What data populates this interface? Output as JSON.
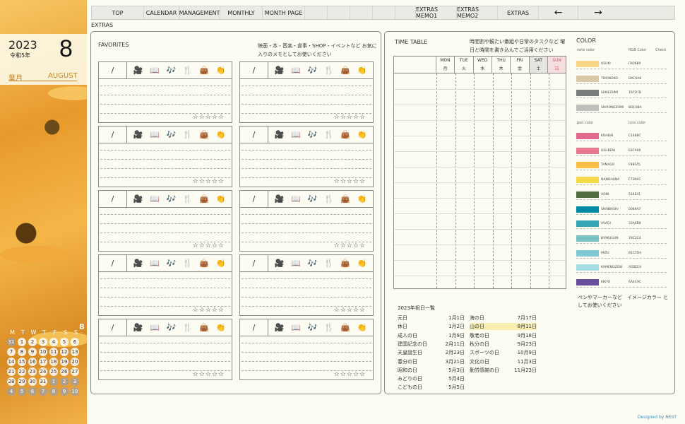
{
  "sidebar": {
    "year": "2023",
    "wareki": "令和5年",
    "month_number": "8",
    "old_month_name": "葉月",
    "english_month": "AUGUST",
    "mini_calendar": {
      "month": "8",
      "weekdays": [
        "M",
        "T",
        "W",
        "T",
        "F",
        "S",
        "S"
      ],
      "days": [
        {
          "d": "31",
          "gray": true
        },
        {
          "d": "1"
        },
        {
          "d": "2"
        },
        {
          "d": "3"
        },
        {
          "d": "4"
        },
        {
          "d": "5"
        },
        {
          "d": "6"
        },
        {
          "d": "7"
        },
        {
          "d": "8"
        },
        {
          "d": "9"
        },
        {
          "d": "10"
        },
        {
          "d": "11"
        },
        {
          "d": "12"
        },
        {
          "d": "13"
        },
        {
          "d": "14"
        },
        {
          "d": "15"
        },
        {
          "d": "16"
        },
        {
          "d": "17"
        },
        {
          "d": "18"
        },
        {
          "d": "19"
        },
        {
          "d": "20"
        },
        {
          "d": "21"
        },
        {
          "d": "22"
        },
        {
          "d": "23"
        },
        {
          "d": "24"
        },
        {
          "d": "25"
        },
        {
          "d": "26"
        },
        {
          "d": "27"
        },
        {
          "d": "28"
        },
        {
          "d": "29"
        },
        {
          "d": "30"
        },
        {
          "d": "31"
        },
        {
          "d": "1",
          "gray": true
        },
        {
          "d": "2",
          "gray": true
        },
        {
          "d": "3",
          "gray": true
        },
        {
          "d": "4",
          "gray": true
        },
        {
          "d": "5",
          "gray": true
        },
        {
          "d": "6",
          "gray": true
        },
        {
          "d": "7",
          "gray": true
        },
        {
          "d": "8",
          "gray": true
        },
        {
          "d": "9",
          "gray": true
        },
        {
          "d": "10",
          "gray": true
        }
      ]
    }
  },
  "nav": {
    "top": "TOP",
    "calendar": "CALENDAR",
    "management": "MANAGEMENT",
    "monthly": "MONTHLY",
    "month_page": "MONTH PAGE",
    "extras_memo1": "EXTRAS MEMO1",
    "extras_memo2": "EXTRAS MEMO2",
    "extras": "EXTRAS",
    "prev": "←",
    "next": "→"
  },
  "page_label": "EXTRAS",
  "favorites": {
    "title": "FAVORITES",
    "note": "映画・本・音楽・食事・SHOP・イベントなど お気に入りのメモとしてお使いください",
    "slash": "/",
    "icons": [
      "🎥",
      "📖",
      "🎶",
      "🍴",
      "👜",
      "👏"
    ],
    "stars": "☆☆☆☆☆"
  },
  "timetable": {
    "title": "TIME TABLE",
    "note": "時間割や観たい番組や日常のタスクなど 曜日と時間を書き込んでご活用ください",
    "days": [
      {
        "en": "MON",
        "jp": "月"
      },
      {
        "en": "TUE",
        "jp": "火"
      },
      {
        "en": "WED",
        "jp": "水"
      },
      {
        "en": "THU",
        "jp": "木"
      },
      {
        "en": "FRI",
        "jp": "金"
      },
      {
        "en": "SAT",
        "jp": "土"
      },
      {
        "en": "SUN",
        "jp": "日"
      }
    ]
  },
  "holidays": {
    "title": "2023年祝日一覧",
    "list": [
      {
        "name": "元日",
        "date": "1月1日"
      },
      {
        "name": "休日",
        "date": "1月2日"
      },
      {
        "name": "成人の日",
        "date": "1月9日"
      },
      {
        "name": "建国記念の日",
        "date": "2月11日"
      },
      {
        "name": "天皇誕生日",
        "date": "2月23日"
      },
      {
        "name": "春分の日",
        "date": "3月21日"
      },
      {
        "name": "昭和の日",
        "date": "5月3日"
      },
      {
        "name": "みどりの日",
        "date": "5月4日"
      },
      {
        "name": "こどもの日",
        "date": "5月5日"
      },
      {
        "name": "海の日",
        "date": "7月17日"
      },
      {
        "name": "山の日",
        "date": "8月11日",
        "highlight": true
      },
      {
        "name": "敬老の日",
        "date": "9月18日"
      },
      {
        "name": "秋分の日",
        "date": "9月23日"
      },
      {
        "name": "スポーツの日",
        "date": "10月9日"
      },
      {
        "name": "文化の日",
        "date": "11月3日"
      },
      {
        "name": "勤労感謝の日",
        "date": "11月23日"
      }
    ]
  },
  "colors": {
    "title": "COLOR",
    "note_header": "note color",
    "rgb_header": "RGB Color",
    "check_header": "Check",
    "pen_header": "pen color",
    "icon_header": "icon color",
    "note_colors": [
      {
        "name": "USUKI",
        "code": "FAD689",
        "hex": "#FAD689"
      },
      {
        "name": "TORINOKO",
        "code": "DAC9A6",
        "hex": "#DAC9A6"
      },
      {
        "name": "SUNEZUMI",
        "code": "787D7B",
        "hex": "#787D7B"
      },
      {
        "name": "SHIRONEZUMI",
        "code": "BDC0BA",
        "hex": "#BDC0BA"
      }
    ],
    "pen_colors": [
      {
        "name": "KOHBAI",
        "code": "E16B8C",
        "hex": "#E16B8C"
      },
      {
        "name": "USUBENI",
        "code": "E87A90",
        "hex": "#E87A90"
      },
      {
        "name": "TAMAGO",
        "code": "F9BF45",
        "hex": "#F9BF45"
      },
      {
        "name": "NANOHANA",
        "code": "F7D94C",
        "hex": "#F7D94C"
      },
      {
        "name": "AONI",
        "code": "516E41",
        "hex": "#516E41"
      },
      {
        "name": "SHINBASHI",
        "code": "0089A7",
        "hex": "#0089A7"
      },
      {
        "name": "ASAGI",
        "code": "33A6B8",
        "hex": "#33A6B8"
      },
      {
        "name": "BYAKUGUN",
        "code": "78C2C4",
        "hex": "#78C2C4"
      },
      {
        "name": "MIZU",
        "code": "81C7D4",
        "hex": "#81C7D4"
      },
      {
        "name": "KAMENOZOKI",
        "code": "A5DEE4",
        "hex": "#A5DEE4"
      },
      {
        "name": "KIKYO",
        "code": "6A4C9C",
        "hex": "#6A4C9C"
      }
    ],
    "footer_note": "ペンやマーカーなど　イメージカラー としてお使いください"
  },
  "credit": "Designed by NEST"
}
